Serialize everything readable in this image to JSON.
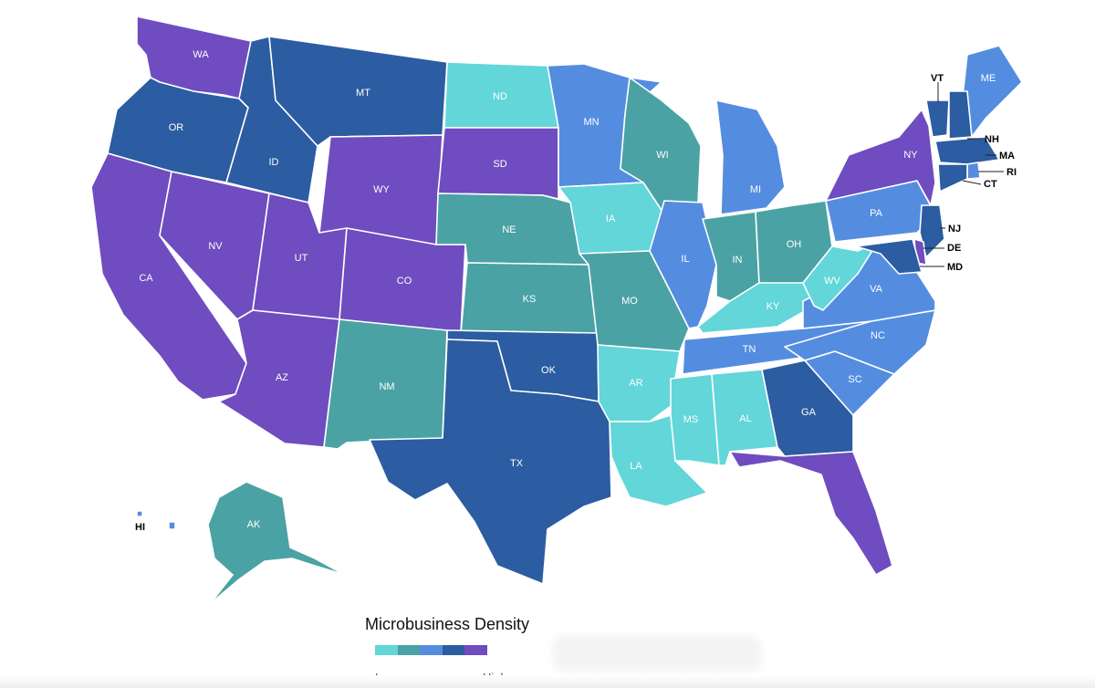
{
  "legend": {
    "title": "Microbusiness Density",
    "low_label": "Low",
    "high_label": "High",
    "scale_colors": [
      "#62d6d9",
      "#4aa2a4",
      "#548de0",
      "#2c5ca1",
      "#6f4cbf"
    ]
  },
  "states": [
    {
      "code": "WA",
      "name": "WA",
      "level": 5
    },
    {
      "code": "OR",
      "name": "OR",
      "level": 4
    },
    {
      "code": "CA",
      "name": "CA",
      "level": 5
    },
    {
      "code": "ID",
      "name": "ID",
      "level": 4
    },
    {
      "code": "NV",
      "name": "NV",
      "level": 5
    },
    {
      "code": "MT",
      "name": "MT",
      "level": 4
    },
    {
      "code": "WY",
      "name": "WY",
      "level": 5
    },
    {
      "code": "UT",
      "name": "UT",
      "level": 5
    },
    {
      "code": "AZ",
      "name": "AZ",
      "level": 5
    },
    {
      "code": "CO",
      "name": "CO",
      "level": 5
    },
    {
      "code": "NM",
      "name": "NM",
      "level": 2
    },
    {
      "code": "ND",
      "name": "ND",
      "level": 1
    },
    {
      "code": "SD",
      "name": "SD",
      "level": 5
    },
    {
      "code": "NE",
      "name": "NE",
      "level": 2
    },
    {
      "code": "KS",
      "name": "KS",
      "level": 2
    },
    {
      "code": "OK",
      "name": "OK",
      "level": 4
    },
    {
      "code": "TX",
      "name": "TX",
      "level": 4
    },
    {
      "code": "MN",
      "name": "MN",
      "level": 3
    },
    {
      "code": "IA",
      "name": "IA",
      "level": 1
    },
    {
      "code": "MO",
      "name": "MO",
      "level": 2
    },
    {
      "code": "AR",
      "name": "AR",
      "level": 1
    },
    {
      "code": "LA",
      "name": "LA",
      "level": 1
    },
    {
      "code": "WI",
      "name": "WI",
      "level": 2
    },
    {
      "code": "IL",
      "name": "IL",
      "level": 3
    },
    {
      "code": "MI",
      "name": "MI",
      "level": 3
    },
    {
      "code": "IN",
      "name": "IN",
      "level": 2
    },
    {
      "code": "OH",
      "name": "OH",
      "level": 2
    },
    {
      "code": "KY",
      "name": "KY",
      "level": 1
    },
    {
      "code": "TN",
      "name": "TN",
      "level": 3
    },
    {
      "code": "MS",
      "name": "MS",
      "level": 1
    },
    {
      "code": "AL",
      "name": "AL",
      "level": 1
    },
    {
      "code": "GA",
      "name": "GA",
      "level": 4
    },
    {
      "code": "FL",
      "name": "FL",
      "level": 5
    },
    {
      "code": "SC",
      "name": "SC",
      "level": 3
    },
    {
      "code": "NC",
      "name": "NC",
      "level": 3
    },
    {
      "code": "VA",
      "name": "VA",
      "level": 3
    },
    {
      "code": "WV",
      "name": "WV",
      "level": 1
    },
    {
      "code": "PA",
      "name": "PA",
      "level": 3
    },
    {
      "code": "NY",
      "name": "NY",
      "level": 5
    },
    {
      "code": "ME",
      "name": "ME",
      "level": 3
    },
    {
      "code": "VT",
      "name": "VT",
      "level": 4
    },
    {
      "code": "NH",
      "name": "NH",
      "level": 4
    },
    {
      "code": "MA",
      "name": "MA",
      "level": 4
    },
    {
      "code": "RI",
      "name": "RI",
      "level": 3
    },
    {
      "code": "CT",
      "name": "CT",
      "level": 4
    },
    {
      "code": "NJ",
      "name": "NJ",
      "level": 4
    },
    {
      "code": "DE",
      "name": "DE",
      "level": 5
    },
    {
      "code": "MD",
      "name": "MD",
      "level": 4
    },
    {
      "code": "AK",
      "name": "AK",
      "level": 2
    },
    {
      "code": "HI",
      "name": "HI",
      "level": 3
    }
  ]
}
